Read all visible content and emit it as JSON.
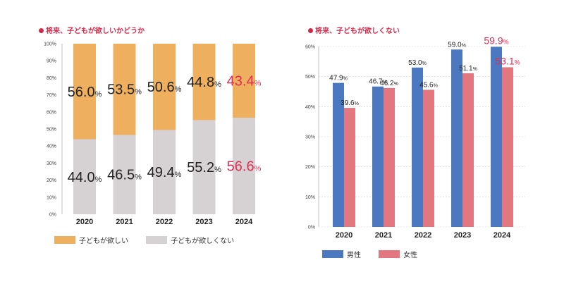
{
  "chart_data": [
    {
      "type": "bar",
      "stacked": true,
      "title": "将来、子どもが欲しいかどうか",
      "categories": [
        "2020",
        "2021",
        "2022",
        "2023",
        "2024"
      ],
      "series": [
        {
          "name": "子どもが欲しい",
          "values": [
            56.0,
            53.5,
            50.6,
            44.8,
            43.4
          ],
          "color": "#eeaf5e"
        },
        {
          "name": "子どもが欲しくない",
          "values": [
            44.0,
            46.5,
            49.4,
            55.2,
            56.6
          ],
          "color": "#d6d2d3"
        }
      ],
      "ylim": [
        0,
        100
      ],
      "yticks": [
        "0%",
        "10%",
        "20%",
        "30%",
        "40%",
        "50%",
        "60%",
        "70%",
        "80%",
        "90%",
        "100%"
      ],
      "highlight_color": "#e02d53",
      "highlight_category": "2024",
      "legend_position": "bottom",
      "grid": false
    },
    {
      "type": "bar",
      "title": "将来、子どもが欲しくない",
      "categories": [
        "2020",
        "2021",
        "2022",
        "2023",
        "2024"
      ],
      "series": [
        {
          "name": "男性",
          "values": [
            47.9,
            46.7,
            53.0,
            59.0,
            59.9
          ],
          "color": "#4b78be"
        },
        {
          "name": "女性",
          "values": [
            39.6,
            46.2,
            45.6,
            51.1,
            53.1
          ],
          "color": "#e2777f"
        }
      ],
      "ylim": [
        0,
        60
      ],
      "yticks": [
        "0%",
        "10%",
        "20%",
        "30%",
        "40%",
        "50%",
        "60%"
      ],
      "highlight_color": "#e02d53",
      "highlight_category": "2024",
      "legend_position": "bottom",
      "grid": true
    }
  ],
  "ui": {
    "colors": {
      "title": "#cf2a4b",
      "text": "#222222",
      "axis": "#444444"
    }
  }
}
